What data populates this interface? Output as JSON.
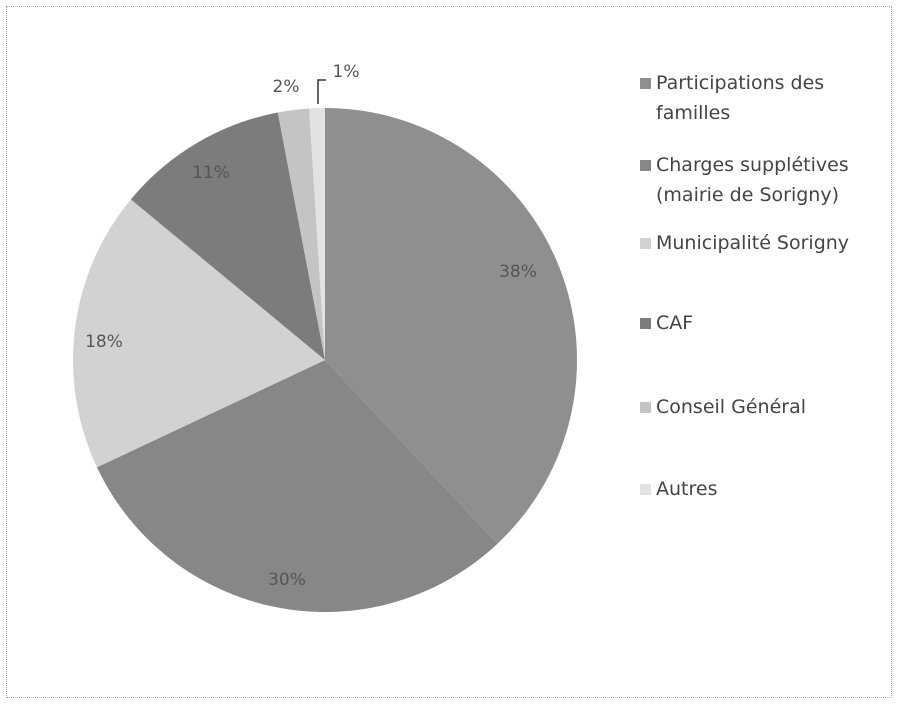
{
  "chart_data": {
    "type": "pie",
    "categories": [
      "Participations des familles",
      "Charges supplétives (mairie de Sorigny)",
      "Municipalité Sorigny",
      "CAF",
      "Conseil Général",
      "Autres"
    ],
    "values": [
      38,
      30,
      18,
      11,
      2,
      1
    ],
    "value_labels": [
      "38%",
      "30%",
      "18%",
      "11%",
      "2%",
      "1%"
    ],
    "colors": [
      "#8f8f8f",
      "#878787",
      "#d2d2d2",
      "#7c7c7c",
      "#c4c4c4",
      "#e2e2e2"
    ],
    "legend": "right"
  }
}
